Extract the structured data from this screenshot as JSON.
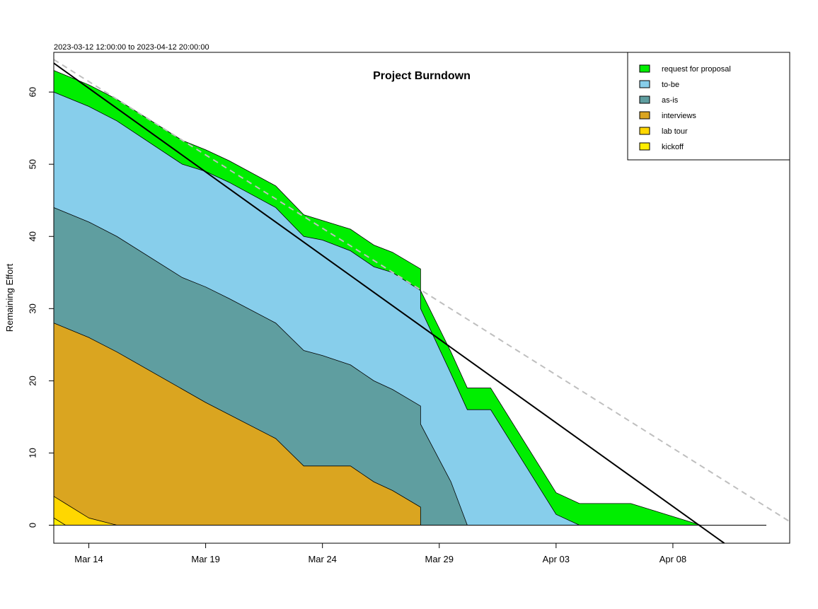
{
  "chart_data": {
    "type": "area",
    "title": "Project Burndown",
    "subtitle": "2023-03-12 12:00:00 to 2023-04-12 20:00:00",
    "xlabel": "",
    "ylabel": "Remaining Effort",
    "xlim": [
      0.5,
      32.0
    ],
    "ylim": [
      -2.5,
      65.5
    ],
    "x_ticks": [
      {
        "x": 2,
        "label": "Mar 14"
      },
      {
        "x": 7,
        "label": "Mar 19"
      },
      {
        "x": 12,
        "label": "Mar 24"
      },
      {
        "x": 17,
        "label": "Mar 29"
      },
      {
        "x": 22,
        "label": "Apr 03"
      },
      {
        "x": 27,
        "label": "Apr 08"
      }
    ],
    "y_ticks": [
      0,
      10,
      20,
      30,
      40,
      50,
      60
    ],
    "legend_position": "top-right",
    "stacked_series": [
      {
        "name": "kickoff",
        "color": "#ffee00",
        "points": [
          [
            0.5,
            1.0
          ],
          [
            1.0,
            0.0
          ],
          [
            31,
            0
          ]
        ]
      },
      {
        "name": "lab tour",
        "color": "#ffd700",
        "points": [
          [
            0.5,
            4.0
          ],
          [
            1.0,
            3.0
          ],
          [
            2.0,
            1.0
          ],
          [
            3.2,
            0.0
          ],
          [
            31,
            0
          ]
        ]
      },
      {
        "name": "interviews",
        "color": "#daa520",
        "points": [
          [
            0.5,
            28.0
          ],
          [
            2.0,
            26.0
          ],
          [
            3.2,
            24.0
          ],
          [
            7.0,
            17.0
          ],
          [
            10.0,
            12.0
          ],
          [
            11.2,
            8.2
          ],
          [
            12.0,
            8.2
          ],
          [
            13.2,
            8.2
          ],
          [
            14.2,
            6.0
          ],
          [
            15.0,
            4.8
          ],
          [
            16.2,
            2.5
          ],
          [
            16.2,
            0.0
          ],
          [
            31,
            0
          ]
        ]
      },
      {
        "name": "as-is",
        "color": "#5f9ea0",
        "points": [
          [
            0.5,
            44.0
          ],
          [
            2.0,
            42.0
          ],
          [
            3.2,
            40.0
          ],
          [
            6.0,
            34.3
          ],
          [
            7.0,
            33.0
          ],
          [
            8.0,
            31.4
          ],
          [
            10.0,
            28.0
          ],
          [
            11.2,
            24.2
          ],
          [
            12.0,
            23.5
          ],
          [
            13.2,
            22.2
          ],
          [
            14.2,
            20.0
          ],
          [
            15.0,
            18.8
          ],
          [
            16.2,
            16.5
          ],
          [
            16.2,
            14.0
          ],
          [
            17.5,
            6.0
          ],
          [
            18.2,
            0.0
          ],
          [
            31,
            0
          ]
        ]
      },
      {
        "name": "to-be",
        "color": "#87ceeb",
        "points": [
          [
            0.5,
            60.0
          ],
          [
            2.0,
            58.0
          ],
          [
            3.2,
            56.0
          ],
          [
            6.0,
            50.0
          ],
          [
            7.0,
            49.0
          ],
          [
            8.0,
            47.5
          ],
          [
            10.0,
            44.0
          ],
          [
            11.2,
            40.0
          ],
          [
            12.0,
            39.5
          ],
          [
            13.2,
            38.0
          ],
          [
            14.2,
            35.8
          ],
          [
            15.0,
            35.0
          ],
          [
            16.2,
            32.5
          ],
          [
            16.2,
            30.0
          ],
          [
            17.5,
            21.0
          ],
          [
            18.2,
            16.0
          ],
          [
            19.2,
            16.0
          ],
          [
            22.0,
            1.5
          ],
          [
            23.0,
            0.0
          ],
          [
            31,
            0
          ]
        ]
      },
      {
        "name": "request for proposal",
        "color": "#00ee00",
        "points": [
          [
            0.5,
            63.0
          ],
          [
            2.0,
            61.0
          ],
          [
            3.2,
            59.0
          ],
          [
            6.0,
            53.3
          ],
          [
            7.0,
            52.0
          ],
          [
            8.0,
            50.5
          ],
          [
            10.0,
            47.0
          ],
          [
            11.2,
            43.0
          ],
          [
            12.0,
            42.2
          ],
          [
            13.2,
            41.0
          ],
          [
            14.2,
            38.8
          ],
          [
            15.0,
            37.8
          ],
          [
            16.2,
            35.5
          ],
          [
            16.2,
            32.5
          ],
          [
            17.5,
            24.0
          ],
          [
            18.2,
            19.0
          ],
          [
            19.2,
            19.0
          ],
          [
            22.0,
            4.5
          ],
          [
            23.0,
            3.0
          ],
          [
            25.2,
            3.0
          ],
          [
            28.2,
            0.0
          ],
          [
            31,
            0
          ]
        ]
      }
    ],
    "ideal_line": {
      "style": "solid",
      "color": "#000000",
      "points": [
        [
          0.5,
          64.0
        ],
        [
          29.2,
          -2.5
        ]
      ]
    },
    "trend_line": {
      "style": "dashed",
      "color": "#bfbfbf",
      "points": [
        [
          0.5,
          64.5
        ],
        [
          32.0,
          0.5
        ]
      ]
    }
  }
}
